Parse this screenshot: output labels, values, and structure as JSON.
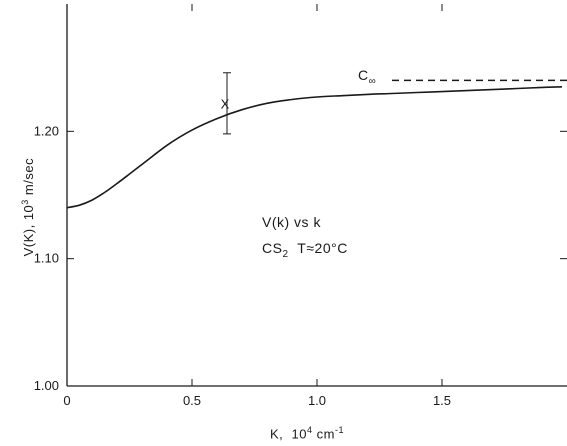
{
  "chart_data": {
    "type": "line",
    "title": "",
    "xlabel": "K,",
    "xlabel_unit_base": "10",
    "xlabel_unit_exp": "4",
    "xlabel_unit_rest": "cm",
    "xlabel_unit_rest_exp": "-1",
    "ylabel_main": "V(K),",
    "ylabel_unit_base": "10",
    "ylabel_unit_exp": "3",
    "ylabel_unit_rest": "m/sec",
    "xlim": [
      0,
      2.0
    ],
    "ylim": [
      1.0,
      1.3
    ],
    "x_ticks": [
      {
        "value": 0,
        "label": "0"
      },
      {
        "value": 0.5,
        "label": "0.5"
      },
      {
        "value": 1.0,
        "label": "1.0"
      },
      {
        "value": 1.5,
        "label": "1.5"
      }
    ],
    "y_ticks": [
      {
        "value": 1.0,
        "label": "1.00"
      },
      {
        "value": 1.1,
        "label": "1.10"
      },
      {
        "value": 1.2,
        "label": "1.20"
      }
    ],
    "series": [
      {
        "x": [
          0,
          0.05,
          0.1,
          0.15,
          0.2,
          0.3,
          0.4,
          0.5,
          0.6,
          0.7,
          0.8,
          0.9,
          1.0,
          1.1,
          1.2,
          1.3,
          1.4,
          1.5,
          1.6,
          1.7,
          1.8,
          1.9,
          1.98
        ],
        "y": [
          1.14,
          1.142,
          1.146,
          1.152,
          1.159,
          1.174,
          1.189,
          1.201,
          1.21,
          1.217,
          1.222,
          1.225,
          1.227,
          1.228,
          1.229,
          1.2297,
          1.2305,
          1.2312,
          1.232,
          1.2328,
          1.2336,
          1.2345,
          1.235
        ]
      }
    ],
    "data_point": {
      "label": "X",
      "x": 0.64,
      "y": 1.222,
      "err_low": 1.198,
      "err_high": 1.246
    },
    "asymptote": {
      "label": "C",
      "label_sub": "∞",
      "y": 1.24,
      "x_start": 1.3,
      "x_end": 2.0
    },
    "annotation_line1": "V(k) vs k",
    "annotation_line2_a": "CS",
    "annotation_line2_sub": "2",
    "annotation_line2_b": "T≈20°C",
    "grid": false
  }
}
